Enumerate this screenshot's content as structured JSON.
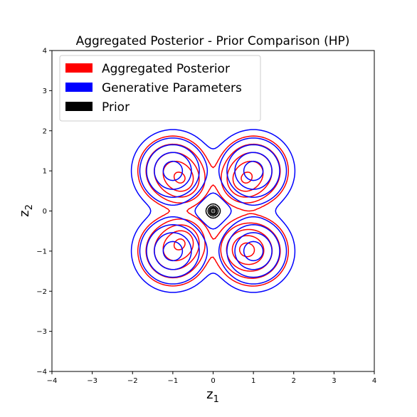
{
  "chart_data": {
    "type": "contour",
    "title": "Aggregated Posterior - Prior Comparison (HP)",
    "xlabel": "z",
    "xlabel_sub": "1",
    "ylabel": "z",
    "ylabel_sub": "2",
    "xlim": [
      -4,
      4
    ],
    "ylim": [
      -4,
      4
    ],
    "xticks": [
      -4,
      -3,
      -2,
      -1,
      0,
      1,
      2,
      3,
      4
    ],
    "yticks": [
      -4,
      -3,
      -2,
      -1,
      0,
      1,
      2,
      3,
      4
    ],
    "xtick_labels": [
      "−4",
      "−3",
      "−2",
      "−1",
      "0",
      "1",
      "2",
      "3",
      "4"
    ],
    "ytick_labels": [
      "−4",
      "−3",
      "−2",
      "−1",
      "0",
      "1",
      "2",
      "3",
      "4"
    ],
    "legend": {
      "placement": "upper-left",
      "entries": [
        {
          "label": "Aggregated Posterior",
          "color": "#ff0000"
        },
        {
          "label": "Generative Parameters",
          "color": "#0000ff"
        },
        {
          "label": "Prior",
          "color": "#000000"
        }
      ]
    },
    "series": [
      {
        "name": "Aggregated Posterior",
        "color": "#ff0000",
        "components": [
          {
            "mean": [
              -1.0,
              -1.0
            ],
            "sigma": 0.36
          },
          {
            "mean": [
              -1.0,
              1.0
            ],
            "sigma": 0.36
          },
          {
            "mean": [
              1.0,
              -1.0
            ],
            "sigma": 0.36
          },
          {
            "mean": [
              1.0,
              1.0
            ],
            "sigma": 0.36
          },
          {
            "mean": [
              -0.75,
              0.75
            ],
            "sigma": 0.26
          },
          {
            "mean": [
              0.75,
              0.75
            ],
            "sigma": 0.26
          },
          {
            "mean": [
              -0.75,
              -0.75
            ],
            "sigma": 0.26
          },
          {
            "mean": [
              0.75,
              -0.95
            ],
            "sigma": 0.26
          }
        ],
        "levels": [
          0.03,
          0.1,
          0.25,
          0.5,
          0.85
        ]
      },
      {
        "name": "Generative Parameters",
        "color": "#0000ff",
        "components": [
          {
            "mean": [
              -1.0,
              -1.0
            ],
            "sigma": 0.42
          },
          {
            "mean": [
              -1.0,
              1.0
            ],
            "sigma": 0.42
          },
          {
            "mean": [
              1.0,
              -1.0
            ],
            "sigma": 0.42
          },
          {
            "mean": [
              1.0,
              1.0
            ],
            "sigma": 0.42
          }
        ],
        "levels": [
          0.05,
          0.15,
          0.3,
          0.55,
          0.85
        ]
      },
      {
        "name": "Prior",
        "color": "#000000",
        "components": [
          {
            "mean": [
              0.0,
              0.0
            ],
            "sigma": 0.08
          }
        ],
        "levels": [
          0.1,
          0.3,
          0.5,
          0.7,
          0.9
        ]
      }
    ]
  }
}
